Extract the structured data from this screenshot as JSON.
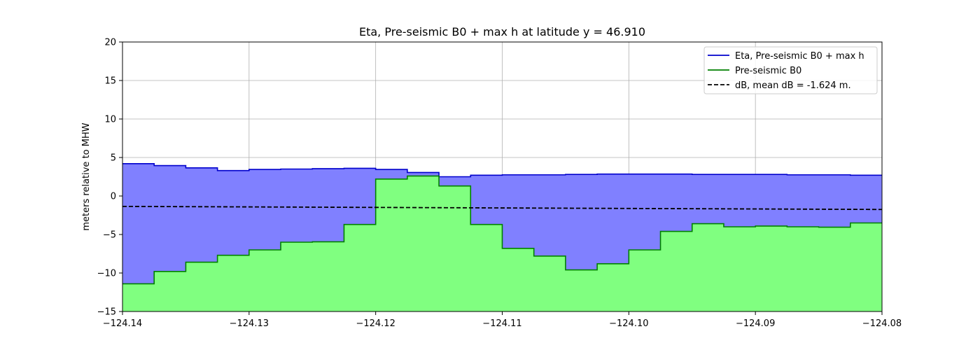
{
  "chart_data": {
    "type": "area",
    "title": "Eta, Pre-seismic B0 + max h at latitude y = 46.910",
    "xlabel": "",
    "ylabel": "meters relative to MHW",
    "xlim": [
      -124.14,
      -124.08
    ],
    "ylim": [
      -15,
      20
    ],
    "x_ticks": [
      -124.14,
      -124.13,
      -124.12,
      -124.11,
      -124.1,
      -124.09,
      -124.08
    ],
    "x_tick_labels": [
      "−124.14",
      "−124.13",
      "−124.12",
      "−124.11",
      "−124.10",
      "−124.09",
      "−124.08"
    ],
    "y_ticks": [
      -15,
      -10,
      -5,
      0,
      5,
      10,
      15,
      20
    ],
    "y_tick_labels": [
      "−15",
      "−10",
      "−5",
      "0",
      "5",
      "10",
      "15",
      "20"
    ],
    "grid": true,
    "legend_position": "top-right",
    "colors": {
      "eta_line": "#0000cc",
      "eta_fill": "#8080ff",
      "b0_line": "#007f00",
      "b0_fill": "#80ff80",
      "db_line": "#000000",
      "grid": "#b0b0b0"
    },
    "series": [
      {
        "name": "Eta, Pre-seismic B0 + max h",
        "style": "step-solid",
        "x": [
          -124.14,
          -124.1375,
          -124.135,
          -124.1325,
          -124.13,
          -124.1275,
          -124.125,
          -124.1225,
          -124.12,
          -124.1175,
          -124.115,
          -124.1125,
          -124.11,
          -124.1075,
          -124.105,
          -124.1025,
          -124.1,
          -124.0975,
          -124.095,
          -124.0925,
          -124.09,
          -124.0875,
          -124.085,
          -124.0825,
          -124.08
        ],
        "y": [
          4.2,
          3.95,
          3.65,
          3.3,
          3.45,
          3.5,
          3.55,
          3.6,
          3.45,
          3.05,
          2.5,
          2.7,
          2.75,
          2.75,
          2.8,
          2.85,
          2.85,
          2.85,
          2.8,
          2.8,
          2.8,
          2.75,
          2.75,
          2.7,
          2.7
        ]
      },
      {
        "name": "Pre-seismic B0",
        "style": "step-solid",
        "x": [
          -124.14,
          -124.1375,
          -124.135,
          -124.1325,
          -124.13,
          -124.1275,
          -124.125,
          -124.1225,
          -124.12,
          -124.1175,
          -124.115,
          -124.1125,
          -124.11,
          -124.1075,
          -124.105,
          -124.1025,
          -124.1,
          -124.0975,
          -124.095,
          -124.0925,
          -124.09,
          -124.0875,
          -124.085,
          -124.0825,
          -124.08
        ],
        "y": [
          -11.4,
          -9.8,
          -8.6,
          -7.7,
          -7.0,
          -6.0,
          -5.95,
          -3.7,
          2.2,
          2.6,
          1.3,
          -3.7,
          -6.8,
          -7.8,
          -9.6,
          -8.8,
          -7.0,
          -4.6,
          -3.6,
          -4.0,
          -3.9,
          -4.0,
          -4.05,
          -3.5,
          -3.5
        ]
      },
      {
        "name": "dB, mean dB = -1.624 m.",
        "style": "dashed",
        "x": [
          -124.14,
          -124.08
        ],
        "y": [
          -1.35,
          -1.75
        ]
      }
    ]
  }
}
